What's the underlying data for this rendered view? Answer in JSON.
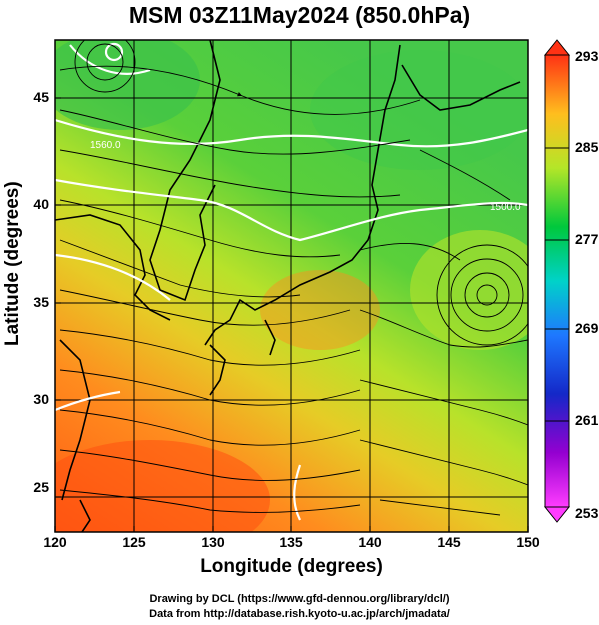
{
  "title": "MSM 03Z11May2024 (850.0hPa)",
  "axes": {
    "xlabel": "Longitude (degrees)",
    "ylabel": "Latitude  (degrees)",
    "xticks": [
      "120",
      "125",
      "130",
      "135",
      "140",
      "145",
      "150"
    ],
    "yticks": [
      "45",
      "40",
      "35",
      "30",
      "25"
    ],
    "xlim": [
      120,
      150
    ],
    "ylim": [
      22.4,
      47.6
    ]
  },
  "colorbar": {
    "labels": [
      "293",
      "285",
      "277",
      "269",
      "261",
      "253"
    ],
    "range": [
      253,
      293
    ]
  },
  "contour_labels": [
    "1560.0",
    "1530.0",
    "1500.0"
  ],
  "credits": {
    "line1": "Drawing by DCL (https://www.gfd-dennou.org/library/dcl/)",
    "line2": "Data from http://database.rish.kyoto-u.ac.jp/arch/jmadata/"
  }
}
